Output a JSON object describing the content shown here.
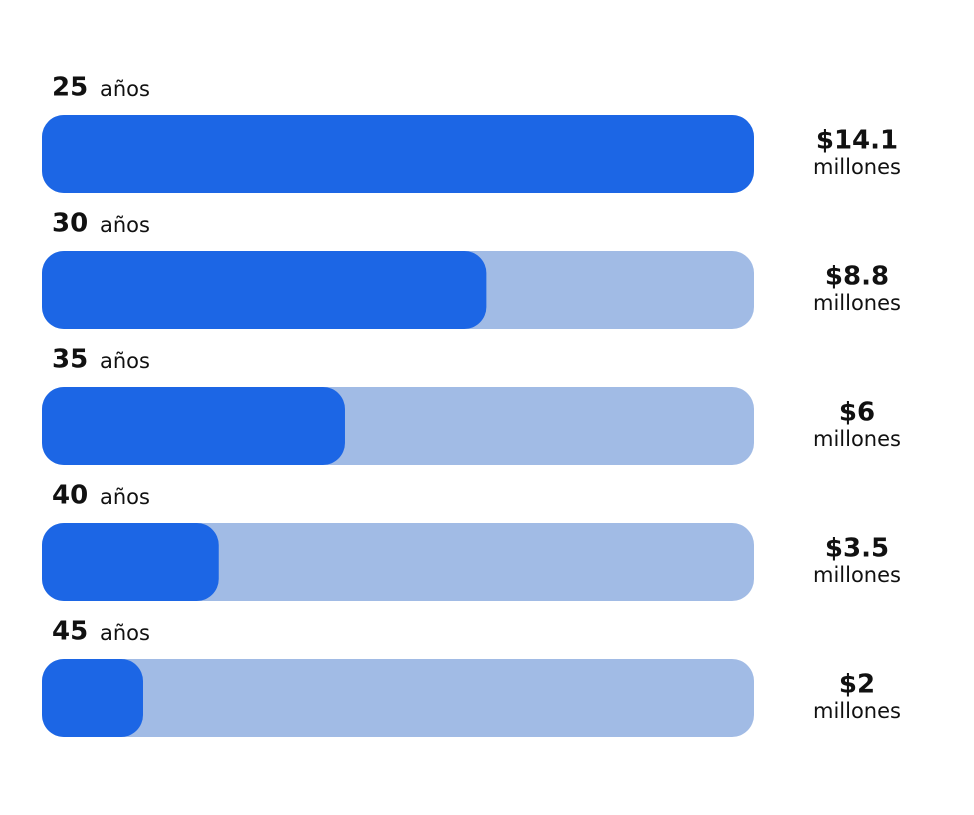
{
  "chart_data": {
    "type": "bar",
    "categories": [
      "25",
      "30",
      "35",
      "40",
      "45"
    ],
    "category_suffix": "años",
    "values": [
      14.1,
      8.8,
      6,
      3.5,
      2
    ],
    "value_labels": [
      "$14.1",
      "$8.8",
      "$6",
      "$3.5",
      "$2"
    ],
    "value_unit": "millones",
    "color": "#1c66e5",
    "track_color": "#a1bbe5"
  }
}
